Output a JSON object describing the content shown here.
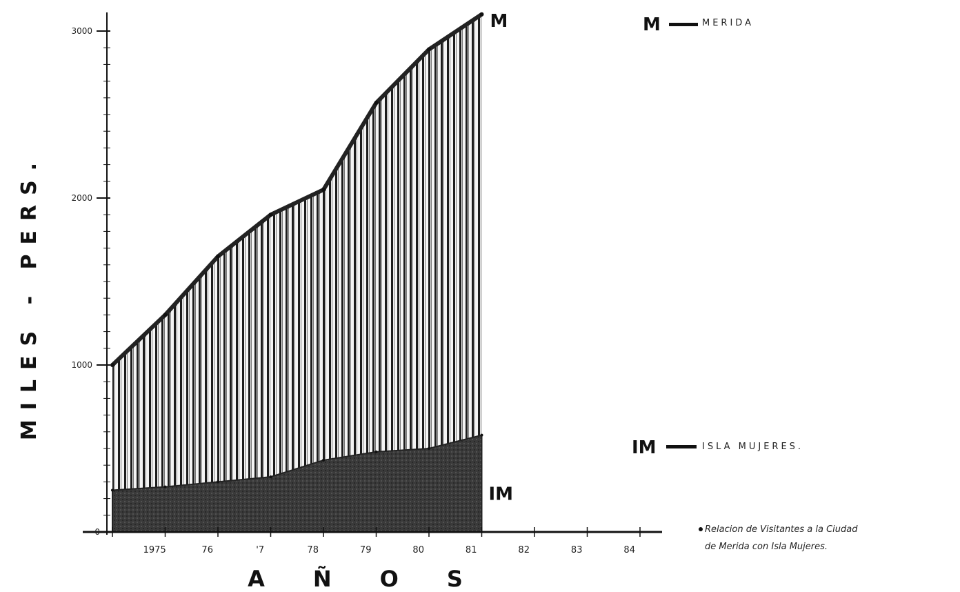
{
  "chart_data": {
    "type": "area",
    "x": [
      "1974",
      "1975",
      "1976",
      "1977",
      "1978",
      "1979",
      "1980",
      "1981"
    ],
    "x_tick_labels": [
      "1975",
      "76",
      "'7",
      "78",
      "79",
      "80",
      "81",
      "82",
      "83",
      "84"
    ],
    "y_tick_labels": [
      "0",
      "1000",
      "2000",
      "3000"
    ],
    "ylim": [
      0,
      3100
    ],
    "series": [
      {
        "name": "MERIDA",
        "mark": "M",
        "values": [
          1000,
          1300,
          1650,
          1900,
          2050,
          2570,
          2890,
          3100
        ]
      },
      {
        "name": "ISLA MUJERES.",
        "mark": "IM",
        "values": [
          250,
          270,
          300,
          330,
          430,
          480,
          500,
          580
        ]
      }
    ],
    "xlabel": "A Ñ O S",
    "ylabel": "MILES - PERS.",
    "note": [
      "Relacion de Visitantes a la Ciudad",
      "de Merida con Isla Mujeres."
    ],
    "colors": {
      "upper_fill": "#f2f2f2",
      "hatch": "#1a1a1a",
      "lower_fill": "#3a3a3a",
      "axis": "#111111"
    },
    "grid": false,
    "legend_placement": "right"
  }
}
